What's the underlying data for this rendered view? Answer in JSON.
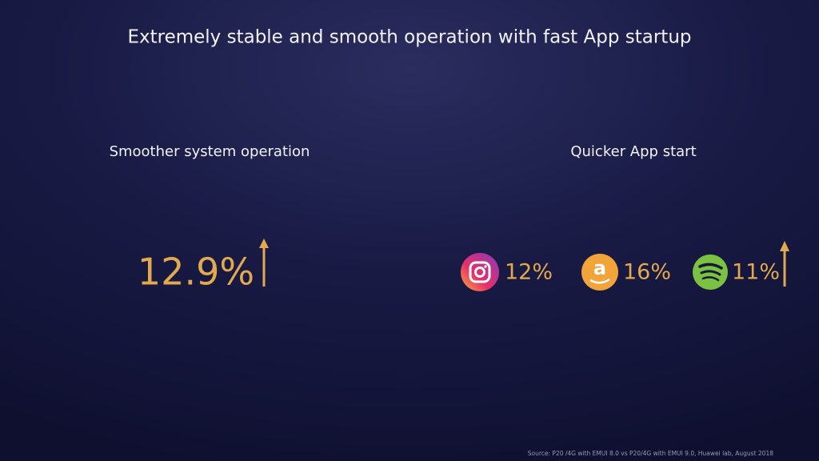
{
  "title": "Extremely stable and smooth operation with fast App startup",
  "left": {
    "heading": "Smoother system operation",
    "value": "12.9%"
  },
  "right": {
    "heading": "Quicker App start",
    "apps": [
      {
        "value": "12%"
      },
      {
        "value": "16%"
      },
      {
        "value": "11%"
      }
    ]
  },
  "source": "Source: P20 /4G with EMUI 8.0 vs P20/4G  with EMUI 9.0, Huawei lab, August 2018"
}
